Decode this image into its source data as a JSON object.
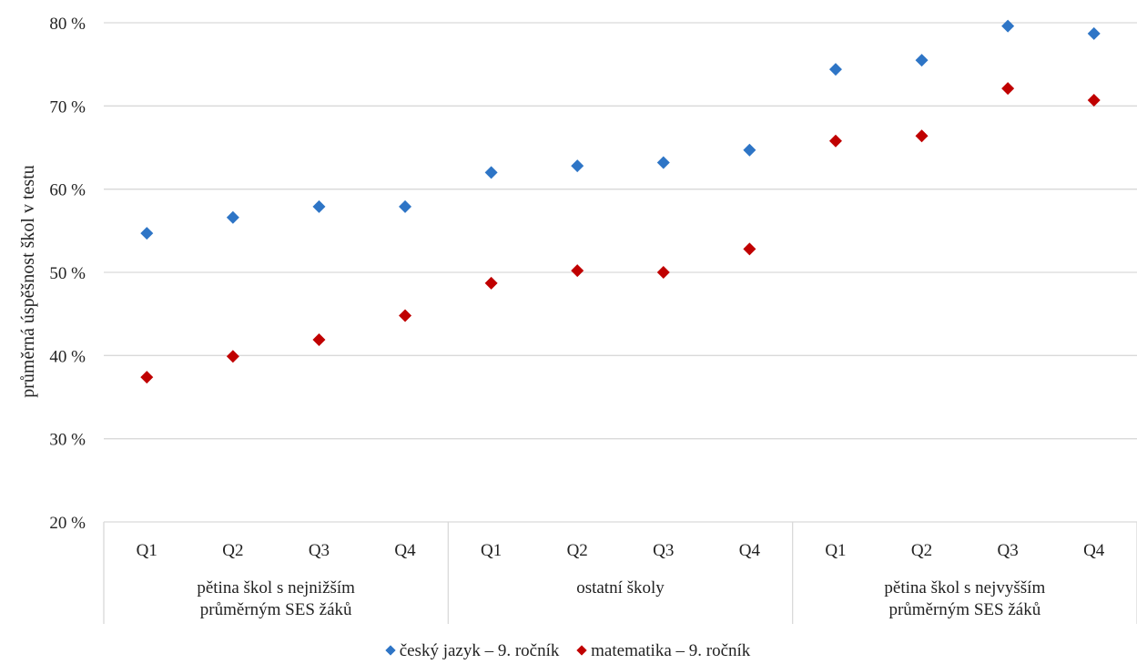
{
  "chart_data": {
    "type": "scatter",
    "ylabel": "průměrná úspěšnost škol v testu",
    "ylim": [
      20,
      80
    ],
    "yticks": [
      "20 %",
      "30 %",
      "40 %",
      "50 %",
      "60 %",
      "70 %",
      "80 %"
    ],
    "categories": [
      "Q1",
      "Q2",
      "Q3",
      "Q4",
      "Q1",
      "Q2",
      "Q3",
      "Q4",
      "Q1",
      "Q2",
      "Q3",
      "Q4"
    ],
    "groups": [
      {
        "label": [
          "pětina škol s nejnižším",
          "průměrným SES žáků"
        ]
      },
      {
        "label": [
          "ostatní školy"
        ]
      },
      {
        "label": [
          "pětina škol s nejvyšším",
          "průměrným SES žáků"
        ]
      }
    ],
    "series": [
      {
        "name": "český jazyk – 9. ročník",
        "color": "#2E75C6",
        "values": [
          54.7,
          56.6,
          57.9,
          57.9,
          62.0,
          62.8,
          63.2,
          64.7,
          74.4,
          75.5,
          79.6,
          78.7
        ]
      },
      {
        "name": "matematika – 9. ročník",
        "color": "#C00000",
        "values": [
          37.4,
          39.9,
          41.9,
          44.8,
          48.7,
          50.2,
          50.0,
          52.8,
          65.8,
          66.4,
          72.1,
          70.7
        ]
      }
    ],
    "grid": true,
    "legend_position": "bottom"
  }
}
